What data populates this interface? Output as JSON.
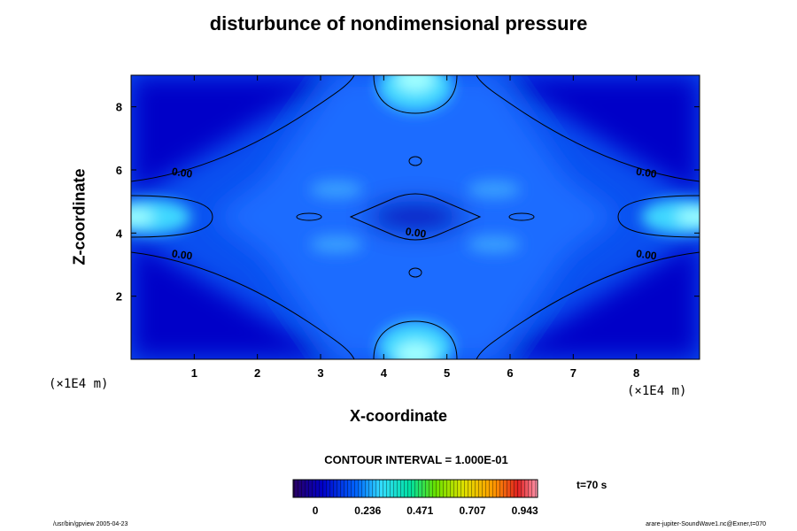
{
  "chart_data": {
    "type": "heatmap",
    "title": "disturbunce of nondimensional pressure",
    "xlabel": "X-coordinate",
    "ylabel": "Z-coordinate",
    "x_unit_label": "(×1E4 m)",
    "z_unit_label": "(×1E4 m)",
    "xlim": [
      0,
      9
    ],
    "ylim": [
      0,
      9
    ],
    "x_ticks": [
      1,
      2,
      3,
      4,
      5,
      6,
      7,
      8
    ],
    "y_ticks": [
      2,
      4,
      6,
      8
    ],
    "contour_interval_label": "CONTOUR INTERVAL = 1.000E-01",
    "contour_labels": [
      {
        "x": 0.8,
        "y": 5.8,
        "text": "0.00"
      },
      {
        "x": 4.5,
        "y": 3.9,
        "text": "0.00"
      },
      {
        "x": 0.8,
        "y": 3.2,
        "text": "0.00"
      },
      {
        "x": 8.15,
        "y": 5.8,
        "text": "0.00"
      },
      {
        "x": 8.15,
        "y": 3.2,
        "text": "0.00"
      }
    ],
    "colorbar": {
      "min": -0.1,
      "max": 1.0,
      "tick_values": [
        0,
        0.236,
        0.471,
        0.707,
        0.943
      ],
      "tick_labels": [
        "0",
        "0.236",
        "0.471",
        "0.707",
        "0.943"
      ]
    },
    "time_label": "t=70 s"
  },
  "footer": {
    "left": "/usr/bin/gpview 2005-04-23",
    "right": "arare-jupiter-SoundWave1.nc@Exner,t=070"
  },
  "colors": {
    "low": "#0000cc",
    "mid": "#1e78ff",
    "high": "#4ef0ff",
    "contour": "#000000"
  }
}
